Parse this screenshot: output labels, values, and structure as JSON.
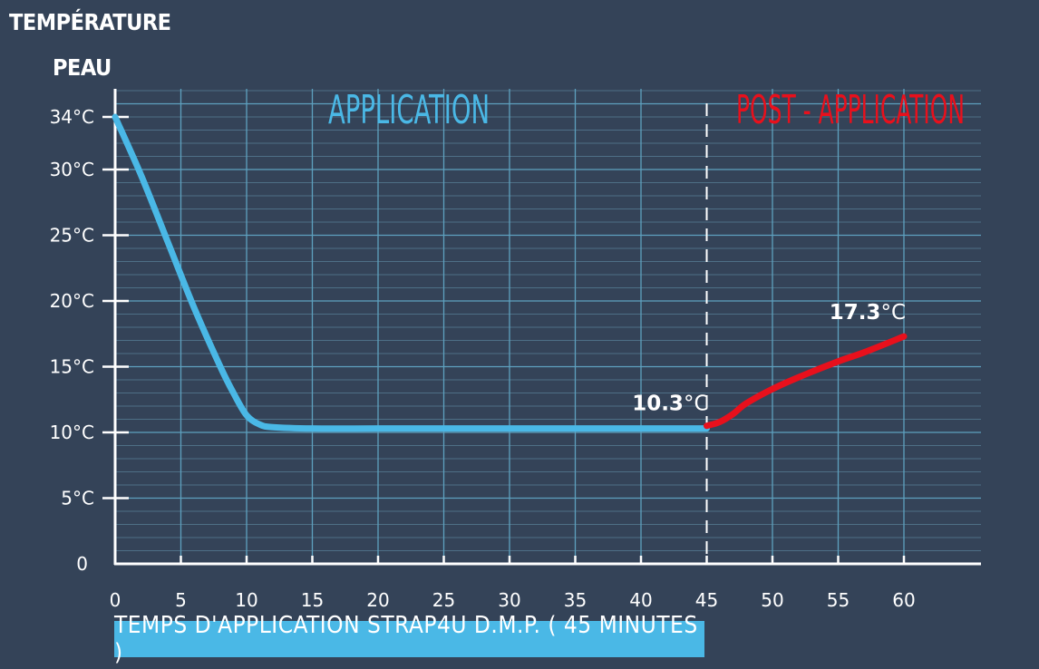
{
  "chart_data": {
    "type": "line",
    "ylabel_line1": "TEMPÉRATURE",
    "ylabel_line2": "PEAU",
    "xlabel": "TEMPS D'APPLICATION STRAP4U D.M.P. ( 45 MINUTES )",
    "xlim": [
      0,
      60
    ],
    "ylim": [
      0,
      34
    ],
    "x_ticks": [
      0,
      5,
      10,
      15,
      20,
      25,
      30,
      35,
      40,
      45,
      50,
      55,
      60
    ],
    "y_ticks": [
      {
        "value": 0,
        "label": "0"
      },
      {
        "value": 5,
        "label": "5°C"
      },
      {
        "value": 10,
        "label": "10°C"
      },
      {
        "value": 15,
        "label": "15°C"
      },
      {
        "value": 20,
        "label": "20°C"
      },
      {
        "value": 25,
        "label": "25°C"
      },
      {
        "value": 30,
        "label": "30°C"
      },
      {
        "value": 34,
        "label": "34°C"
      }
    ],
    "grid": true,
    "divider_x": 45,
    "series": [
      {
        "name": "APPLICATION",
        "color": "#4ab8e6",
        "x": [
          0,
          2,
          4,
          6,
          8,
          9,
          10,
          11,
          12,
          15,
          20,
          25,
          30,
          35,
          40,
          45
        ],
        "y": [
          34,
          29.5,
          24.5,
          19.5,
          15,
          13,
          11.3,
          10.6,
          10.4,
          10.3,
          10.3,
          10.3,
          10.3,
          10.3,
          10.3,
          10.3
        ]
      },
      {
        "name": "POST - APPLICATION",
        "color": "#e8101c",
        "x": [
          45,
          46,
          47,
          48,
          50,
          52,
          55,
          57,
          60
        ],
        "y": [
          10.5,
          10.8,
          11.4,
          12.2,
          13.3,
          14.2,
          15.4,
          16.1,
          17.3
        ]
      }
    ],
    "annotations": [
      {
        "x": 45,
        "y": 10.3,
        "value": "10.3",
        "unit": "°C"
      },
      {
        "x": 60,
        "y": 17.3,
        "value": "17.3",
        "unit": "°C"
      }
    ]
  }
}
